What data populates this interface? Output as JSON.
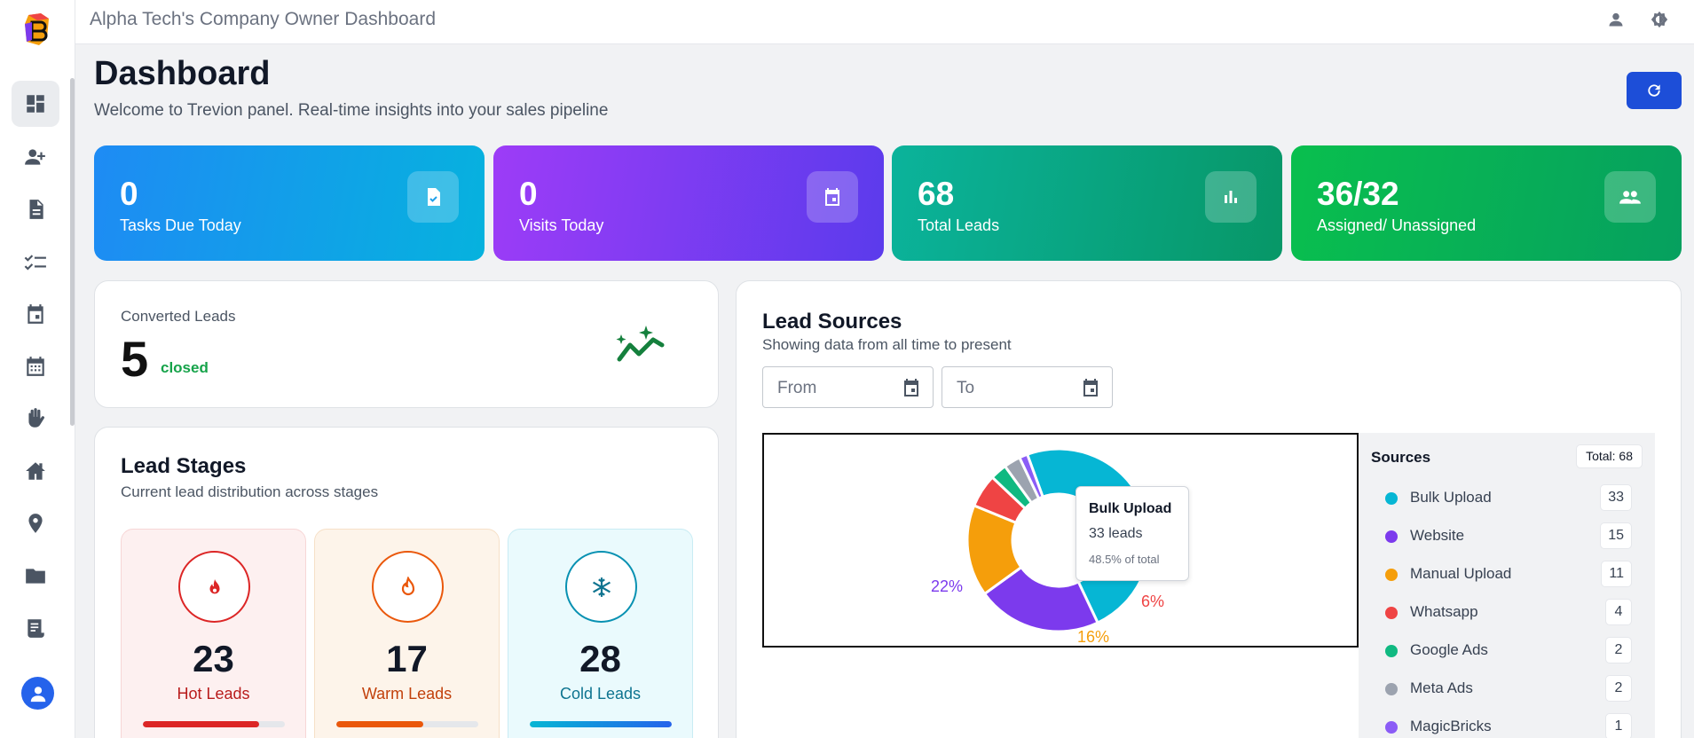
{
  "app": {
    "title": "Alpha Tech's Company Owner Dashboard"
  },
  "header": {
    "title": "Dashboard",
    "subtitle": "Welcome to Trevion panel. Real-time insights into your sales pipeline"
  },
  "sidebar": {
    "items": [
      {
        "icon": "dashboard-icon",
        "active": true
      },
      {
        "icon": "add-user-icon"
      },
      {
        "icon": "document-icon"
      },
      {
        "icon": "checklist-icon"
      },
      {
        "icon": "calendar-event-icon"
      },
      {
        "icon": "calendar-grid-icon"
      },
      {
        "icon": "hand-icon"
      },
      {
        "icon": "home-icon"
      },
      {
        "icon": "location-pin-icon"
      },
      {
        "icon": "folder-icon"
      },
      {
        "icon": "receipt-icon"
      }
    ]
  },
  "stats": [
    {
      "value": "0",
      "label": "Tasks Due Today",
      "icon": "task-check-icon"
    },
    {
      "value": "0",
      "label": "Visits Today",
      "icon": "calendar-icon"
    },
    {
      "value": "68",
      "label": "Total Leads",
      "icon": "bar-chart-icon"
    },
    {
      "value": "36/32",
      "label": "Assigned/ Unassigned",
      "icon": "group-icon"
    }
  ],
  "converted": {
    "label": "Converted Leads",
    "value": "5",
    "tag": "closed",
    "icon": "trend-sparkle-icon"
  },
  "stages": {
    "title": "Lead Stages",
    "subtitle": "Current lead distribution across stages",
    "items": [
      {
        "value": "23",
        "label": "Hot Leads",
        "progress": 0.82,
        "color": "#dc2626"
      },
      {
        "value": "17",
        "label": "Warm Leads",
        "progress": 0.61,
        "color": "#ea580c"
      },
      {
        "value": "28",
        "label": "Cold Leads",
        "progress": 1.0,
        "color": "#0891b2"
      }
    ]
  },
  "sources": {
    "title": "Lead Sources",
    "subtitle": "Showing data from all time to present",
    "from_placeholder": "From",
    "to_placeholder": "To",
    "legend_title": "Sources",
    "total_label": "Total: 68",
    "tooltip": {
      "name": "Bulk Upload",
      "count": "33 leads",
      "share": "48.5% of total"
    },
    "pct_labels": [
      "22%",
      "16%",
      "6%"
    ]
  },
  "chart_data": {
    "type": "pie",
    "categories": [
      "Bulk Upload",
      "Website",
      "Manual Upload",
      "Whatsapp",
      "Google Ads",
      "Meta Ads",
      "MagicBricks"
    ],
    "values": [
      33,
      15,
      11,
      4,
      2,
      2,
      1
    ],
    "colors": [
      "#06b6d4",
      "#7c3aed",
      "#f59e0b",
      "#ef4444",
      "#10b981",
      "#9ca3af",
      "#8b5cf6"
    ],
    "title": "Lead Sources"
  }
}
